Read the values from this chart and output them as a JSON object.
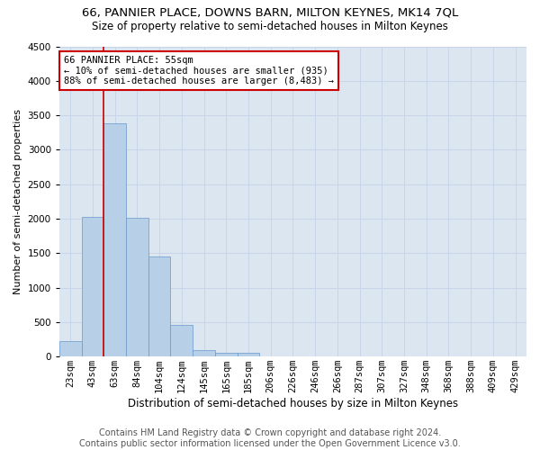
{
  "title1": "66, PANNIER PLACE, DOWNS BARN, MILTON KEYNES, MK14 7QL",
  "title2": "Size of property relative to semi-detached houses in Milton Keynes",
  "xlabel": "Distribution of semi-detached houses by size in Milton Keynes",
  "ylabel": "Number of semi-detached properties",
  "footer1": "Contains HM Land Registry data © Crown copyright and database right 2024.",
  "footer2": "Contains public sector information licensed under the Open Government Licence v3.0.",
  "annotation_title": "66 PANNIER PLACE: 55sqm",
  "annotation_line1": "← 10% of semi-detached houses are smaller (935)",
  "annotation_line2": "88% of semi-detached houses are larger (8,483) →",
  "bar_color": "#b8cfe8",
  "bar_edge_color": "#6699cc",
  "vline_color": "#cc0000",
  "annotation_box_edgecolor": "#cc0000",
  "grid_color": "#c8d4e8",
  "background_color": "#dce6f0",
  "categories": [
    "23sqm",
    "43sqm",
    "63sqm",
    "84sqm",
    "104sqm",
    "124sqm",
    "145sqm",
    "165sqm",
    "185sqm",
    "206sqm",
    "226sqm",
    "246sqm",
    "266sqm",
    "287sqm",
    "307sqm",
    "327sqm",
    "348sqm",
    "368sqm",
    "388sqm",
    "409sqm",
    "429sqm"
  ],
  "values": [
    230,
    2020,
    3380,
    2010,
    1450,
    460,
    95,
    60,
    50,
    0,
    0,
    0,
    0,
    0,
    0,
    0,
    0,
    0,
    0,
    0,
    0
  ],
  "ylim": [
    0,
    4500
  ],
  "yticks": [
    0,
    500,
    1000,
    1500,
    2000,
    2500,
    3000,
    3500,
    4000,
    4500
  ],
  "title1_fontsize": 9.5,
  "title2_fontsize": 8.5,
  "xlabel_fontsize": 8.5,
  "ylabel_fontsize": 8,
  "tick_fontsize": 7.5,
  "footer_fontsize": 7,
  "annotation_fontsize": 7.5
}
